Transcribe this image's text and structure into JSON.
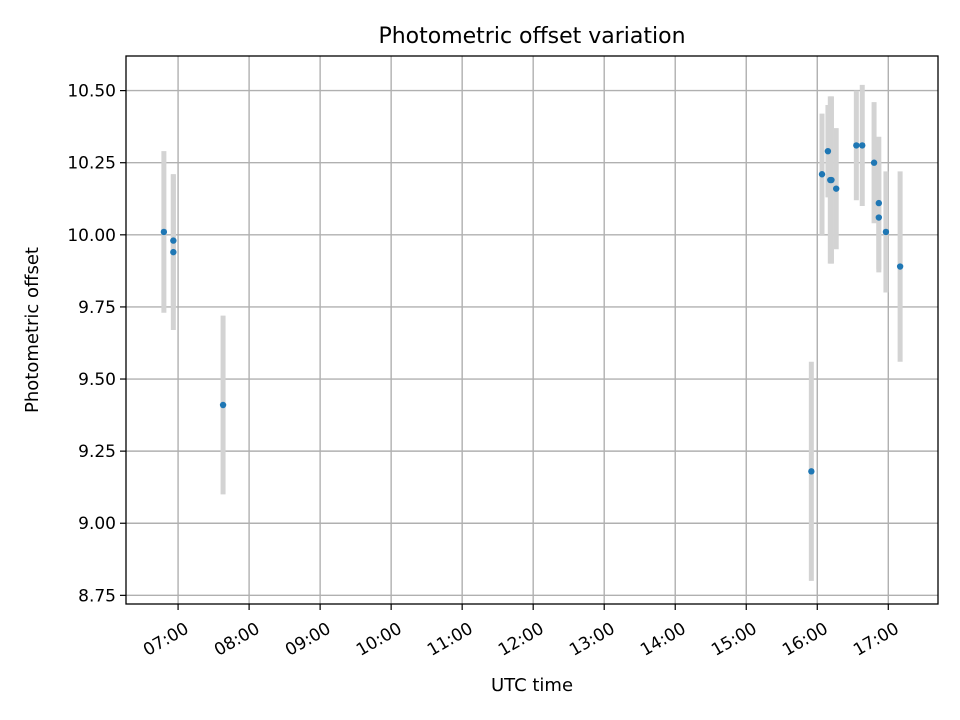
{
  "chart_data": {
    "type": "scatter",
    "title": "Photometric offset variation",
    "xlabel": "UTC time",
    "ylabel": "Photometric offset",
    "x_ticks": [
      "07:00",
      "08:00",
      "09:00",
      "10:00",
      "11:00",
      "12:00",
      "13:00",
      "14:00",
      "15:00",
      "16:00",
      "17:00"
    ],
    "x_tick_hours": [
      7,
      8,
      9,
      10,
      11,
      12,
      13,
      14,
      15,
      16,
      17
    ],
    "y_ticks": [
      "8.75",
      "9.00",
      "9.25",
      "9.50",
      "9.75",
      "10.00",
      "10.25",
      "10.50"
    ],
    "y_tick_values": [
      8.75,
      9.0,
      9.25,
      9.5,
      9.75,
      10.0,
      10.25,
      10.5
    ],
    "xlim": [
      "06:16",
      "17:42"
    ],
    "ylim": [
      8.72,
      10.62
    ],
    "grid": true,
    "colors": {
      "points": "#1f77b4",
      "error_bars": "#d3d3d3",
      "grid": "#b0b0b0"
    },
    "series": [
      {
        "points": [
          {
            "x": "06:48",
            "y": 10.01,
            "err": 0.28
          },
          {
            "x": "06:56",
            "y": 9.98,
            "err": 0.23
          },
          {
            "x": "06:56",
            "y": 9.94,
            "err": 0.27
          },
          {
            "x": "07:38",
            "y": 9.41,
            "err": 0.31
          },
          {
            "x": "15:55",
            "y": 9.18,
            "err": 0.38
          },
          {
            "x": "16:04",
            "y": 10.21,
            "err": 0.21
          },
          {
            "x": "16:09",
            "y": 10.29,
            "err": 0.16
          },
          {
            "x": "16:11",
            "y": 10.19,
            "err": 0.29
          },
          {
            "x": "16:12",
            "y": 10.19,
            "err": 0.29
          },
          {
            "x": "16:16",
            "y": 10.16,
            "err": 0.21
          },
          {
            "x": "16:33",
            "y": 10.31,
            "err": 0.19
          },
          {
            "x": "16:38",
            "y": 10.31,
            "err": 0.21
          },
          {
            "x": "16:48",
            "y": 10.25,
            "err": 0.21
          },
          {
            "x": "16:52",
            "y": 10.11,
            "err": 0.23
          },
          {
            "x": "16:52",
            "y": 10.06,
            "err": 0.19
          },
          {
            "x": "16:58",
            "y": 10.01,
            "err": 0.21
          },
          {
            "x": "17:10",
            "y": 9.89,
            "err": 0.33
          }
        ]
      }
    ]
  }
}
